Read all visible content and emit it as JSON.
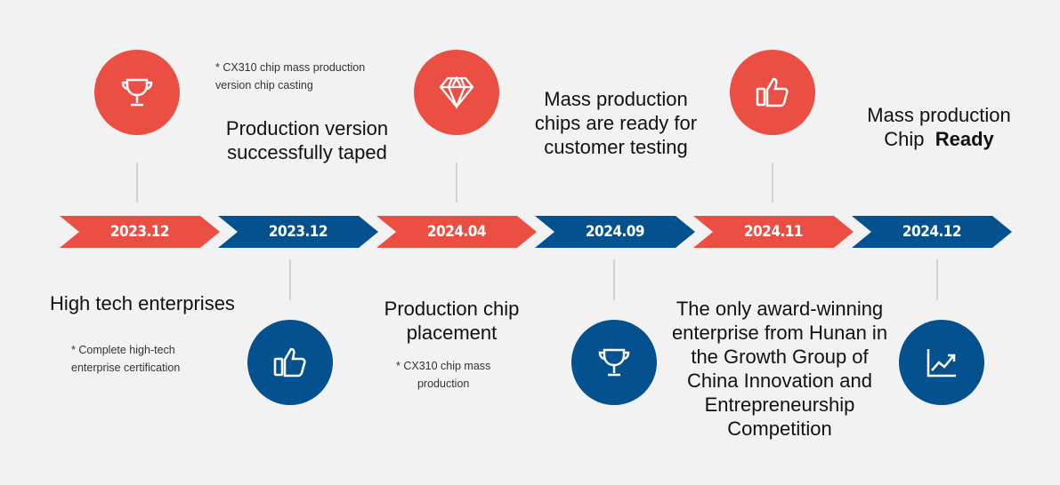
{
  "colors": {
    "red": "#eb4f43",
    "blue": "#03528f",
    "background": "#f2f2f2"
  },
  "timeline": [
    {
      "date": "2023.12",
      "icon": "trophy-icon",
      "title": "High tech enterprises",
      "note": "* Complete high-tech\nenterprise certification"
    },
    {
      "date": "2023.12",
      "icon": "thumbs-up-icon",
      "title": "Production version successfully taped",
      "note": "* CX310 chip mass production\nversion chip casting"
    },
    {
      "date": "2024.04",
      "icon": "diamond-icon",
      "title": "Production chip placement",
      "note": "* CX310 chip mass\nproduction"
    },
    {
      "date": "2024.09",
      "icon": "trophy-icon",
      "title": "Mass production chips are ready for customer testing"
    },
    {
      "date": "2024.11",
      "icon": "thumbs-up-icon",
      "title": "The only award-winning enterprise from Hunan in the Growth Group of China Innovation and Entrepreneurship Competition"
    },
    {
      "date": "2024.12",
      "icon": "chart-up-icon",
      "title_prefix": "Mass production Chip",
      "title_bold": "Ready"
    }
  ]
}
